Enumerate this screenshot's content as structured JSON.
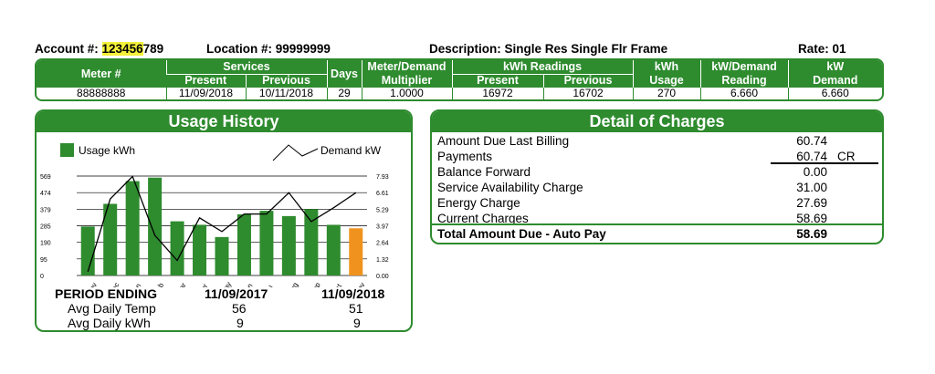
{
  "header": {
    "account_label": "Account #:",
    "account_highlight": "123456",
    "account_rest": "789",
    "location_label": "Location #:",
    "location_value": "99999999",
    "description_label": "Description:",
    "description_value": "Single Res Single Flr Frame",
    "rate_label": "Rate:",
    "rate_value": "01"
  },
  "meter_table": {
    "headers": {
      "meter": "Meter #",
      "services": "Services",
      "present": "Present",
      "previous": "Previous",
      "days": "Days",
      "meter_demand": "Meter/Demand",
      "multiplier": "Multiplier",
      "kwh_readings": "kWh Readings",
      "kwh_present": "Present",
      "kwh_previous": "Previous",
      "kwh": "kWh",
      "usage": "Usage",
      "kw_demand": "kW/Demand",
      "reading": "Reading",
      "kw": "kW",
      "demand": "Demand"
    },
    "row": {
      "meter": "88888888",
      "present": "11/09/2018",
      "previous": "10/11/2018",
      "days": "29",
      "multiplier": "1.0000",
      "kwh_present": "16972",
      "kwh_previous": "16702",
      "usage": "270",
      "reading": "6.660",
      "demand": "6.660"
    }
  },
  "usage_history": {
    "title": "Usage History",
    "period_label": "PERIOD ENDING",
    "date_prev": "11/09/2017",
    "date_curr": "11/09/2018",
    "temp_label": "Avg Daily Temp",
    "temp_prev": "56",
    "temp_curr": "51",
    "kwh_label": "Avg Daily kWh",
    "kwh_prev": "9",
    "kwh_curr": "9"
  },
  "chart_data": {
    "type": "bar",
    "categories": [
      "Nov",
      "Dec",
      "Jan",
      "Feb",
      "Mar",
      "Apr",
      "May",
      "Jun",
      "Jul",
      "Aug",
      "Sep",
      "Oct",
      "Nov"
    ],
    "series": [
      {
        "name": "Usage kWh",
        "values": [
          280,
          410,
          540,
          560,
          310,
          290,
          220,
          350,
          370,
          340,
          380,
          290,
          270
        ],
        "color": "#2e8b2e",
        "highlight_last_color": "#f0921e"
      },
      {
        "name": "Demand kW",
        "values": [
          0.3,
          6.1,
          7.9,
          3.2,
          1.2,
          4.6,
          3.5,
          4.9,
          4.9,
          6.6,
          4.3,
          5.4,
          6.6
        ],
        "color": "#000000"
      }
    ],
    "y_left_ticks": [
      "569",
      "474",
      "379",
      "285",
      "190",
      "95",
      "0"
    ],
    "y_right_ticks": [
      "7.93",
      "6.61",
      "5.29",
      "3.97",
      "2.64",
      "1.32",
      "0.00"
    ],
    "ylim_left": [
      0,
      569
    ],
    "ylim_right": [
      0,
      7.93
    ],
    "legend": {
      "usage": "Usage kWh",
      "demand": "Demand kW"
    },
    "grid": true
  },
  "charges": {
    "title": "Detail of Charges",
    "items": [
      {
        "label": "Amount Due Last Billing",
        "amount": "60.74",
        "suffix": ""
      },
      {
        "label": "Payments",
        "amount": "60.74",
        "suffix": "CR"
      },
      {
        "label": "Balance Forward",
        "amount": "0.00",
        "suffix": ""
      },
      {
        "label": "Service Availability Charge",
        "amount": "31.00",
        "suffix": ""
      },
      {
        "label": "Energy Charge",
        "amount": "27.69",
        "suffix": ""
      },
      {
        "label": "Current Charges",
        "amount": "58.69",
        "suffix": ""
      }
    ],
    "total_label": "Total Amount Due - Auto Pay",
    "total_amount": "58.69"
  }
}
